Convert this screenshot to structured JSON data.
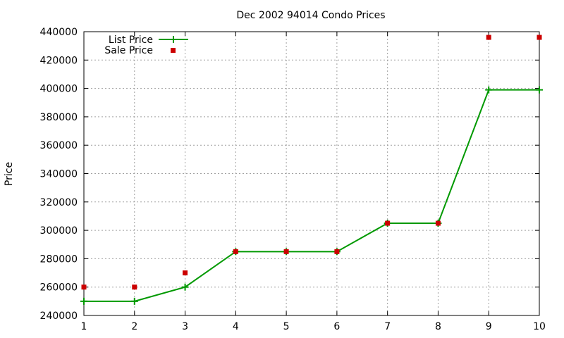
{
  "chart_data": {
    "type": "line",
    "title": "Dec 2002 94014 Condo Prices",
    "xlabel": "",
    "ylabel": "Price",
    "x": [
      1,
      2,
      3,
      4,
      5,
      6,
      7,
      8,
      9,
      10
    ],
    "xlim": [
      1,
      10
    ],
    "ylim": [
      240000,
      440000
    ],
    "xticks": [
      "1",
      "2",
      "3",
      "4",
      "5",
      "6",
      "7",
      "8",
      "9",
      "10"
    ],
    "yticks": [
      "240000",
      "260000",
      "280000",
      "300000",
      "320000",
      "340000",
      "360000",
      "380000",
      "400000",
      "420000",
      "440000"
    ],
    "grid": true,
    "legend_position": "top-left",
    "series": [
      {
        "name": "List Price",
        "style": "line-with-plus-markers",
        "color": "#009900",
        "values": [
          250000,
          250000,
          260000,
          285000,
          285000,
          285000,
          305000,
          305000,
          399000,
          399000
        ]
      },
      {
        "name": "Sale Price",
        "style": "square-markers",
        "color": "#cc0000",
        "values": [
          260000,
          260000,
          270000,
          285000,
          285000,
          285000,
          305000,
          305000,
          436000,
          436000
        ]
      }
    ]
  }
}
